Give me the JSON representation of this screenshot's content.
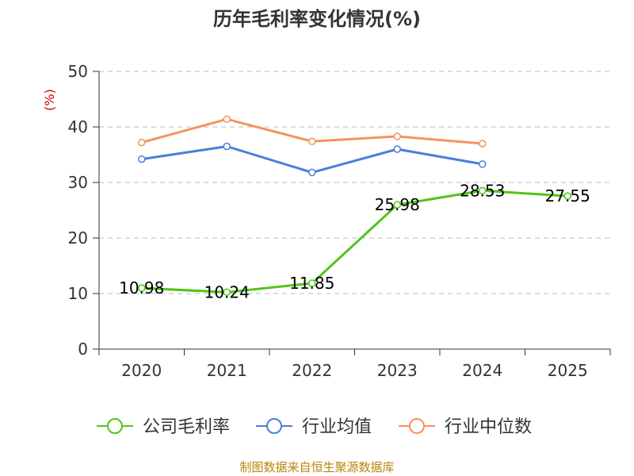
{
  "chart_data": {
    "type": "line",
    "title": "历年毛利率变化情况(%)",
    "ylabel": "(%)",
    "categories": [
      "2020",
      "2021",
      "2022",
      "2023",
      "2024",
      "2025"
    ],
    "yticks": [
      "0",
      "10",
      "20",
      "30",
      "40",
      "50"
    ],
    "ylim": [
      0,
      50
    ],
    "grid": true,
    "legend_position": "bottom",
    "series": [
      {
        "name": "公司毛利率",
        "color": "#52c41a",
        "values": [
          10.98,
          10.24,
          11.85,
          25.98,
          28.53,
          27.55
        ],
        "labels": [
          "10.98",
          "10.24",
          "11.85",
          "25.98",
          "28.53",
          "27.55"
        ]
      },
      {
        "name": "行业均值",
        "color": "#4a7fdc",
        "values": [
          34.2,
          36.5,
          31.8,
          36.0,
          33.3,
          null
        ]
      },
      {
        "name": "行业中位数",
        "color": "#f5925e",
        "values": [
          37.2,
          41.4,
          37.4,
          38.3,
          37.0,
          null
        ]
      }
    ]
  },
  "source": "制图数据来自恒生聚源数据库"
}
